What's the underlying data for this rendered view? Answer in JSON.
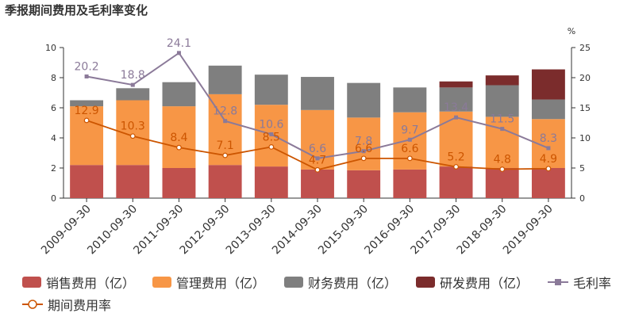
{
  "title": "季报期间费用及毛利率变化",
  "chart_data": {
    "type": "bar",
    "stacked": true,
    "categories": [
      "2009-09-30",
      "2010-09-30",
      "2011-09-30",
      "2012-09-30",
      "2013-09-30",
      "2014-09-30",
      "2015-09-30",
      "2016-09-30",
      "2017-09-30",
      "2018-09-30",
      "2019-09-30"
    ],
    "series": [
      {
        "name": "销售费用（亿）",
        "color": "#c0504d",
        "values": [
          2.2,
          2.2,
          2.0,
          2.2,
          2.1,
          1.9,
          1.85,
          1.9,
          2.1,
          2.0,
          2.0
        ]
      },
      {
        "name": "管理费用（亿）",
        "color": "#f79646",
        "values": [
          3.9,
          4.3,
          4.1,
          4.7,
          4.1,
          3.95,
          3.5,
          3.8,
          3.65,
          3.4,
          3.25
        ]
      },
      {
        "name": "财务费用（亿）",
        "color": "#7f7f7f",
        "values": [
          0.4,
          0.8,
          1.6,
          1.9,
          2.0,
          2.2,
          2.3,
          1.65,
          1.6,
          2.1,
          1.3
        ]
      },
      {
        "name": "研发费用（亿）",
        "color": "#7b2c2c",
        "values": [
          0,
          0,
          0,
          0,
          0,
          0,
          0,
          0,
          0.4,
          0.65,
          2.0
        ]
      }
    ],
    "lines": [
      {
        "name": "毛利率",
        "color": "#8b7a99",
        "axis": "right",
        "values": [
          20.2,
          18.8,
          24.1,
          12.8,
          10.6,
          6.6,
          7.8,
          9.7,
          13.4,
          11.5,
          8.3
        ]
      },
      {
        "name": "期间费用率",
        "color": "#cc5500",
        "axis": "right",
        "values": [
          12.9,
          10.3,
          8.4,
          7.1,
          8.5,
          4.7,
          6.6,
          6.6,
          5.2,
          4.8,
          4.9
        ]
      }
    ],
    "ylim_left": [
      0,
      10
    ],
    "yticks_left": [
      0,
      2,
      4,
      6,
      8,
      10
    ],
    "ylim_right": [
      0,
      25
    ],
    "yticks_right": [
      0,
      5,
      10,
      15,
      20,
      25
    ],
    "right_unit": "%",
    "legend_position": "bottom",
    "grid": false
  }
}
